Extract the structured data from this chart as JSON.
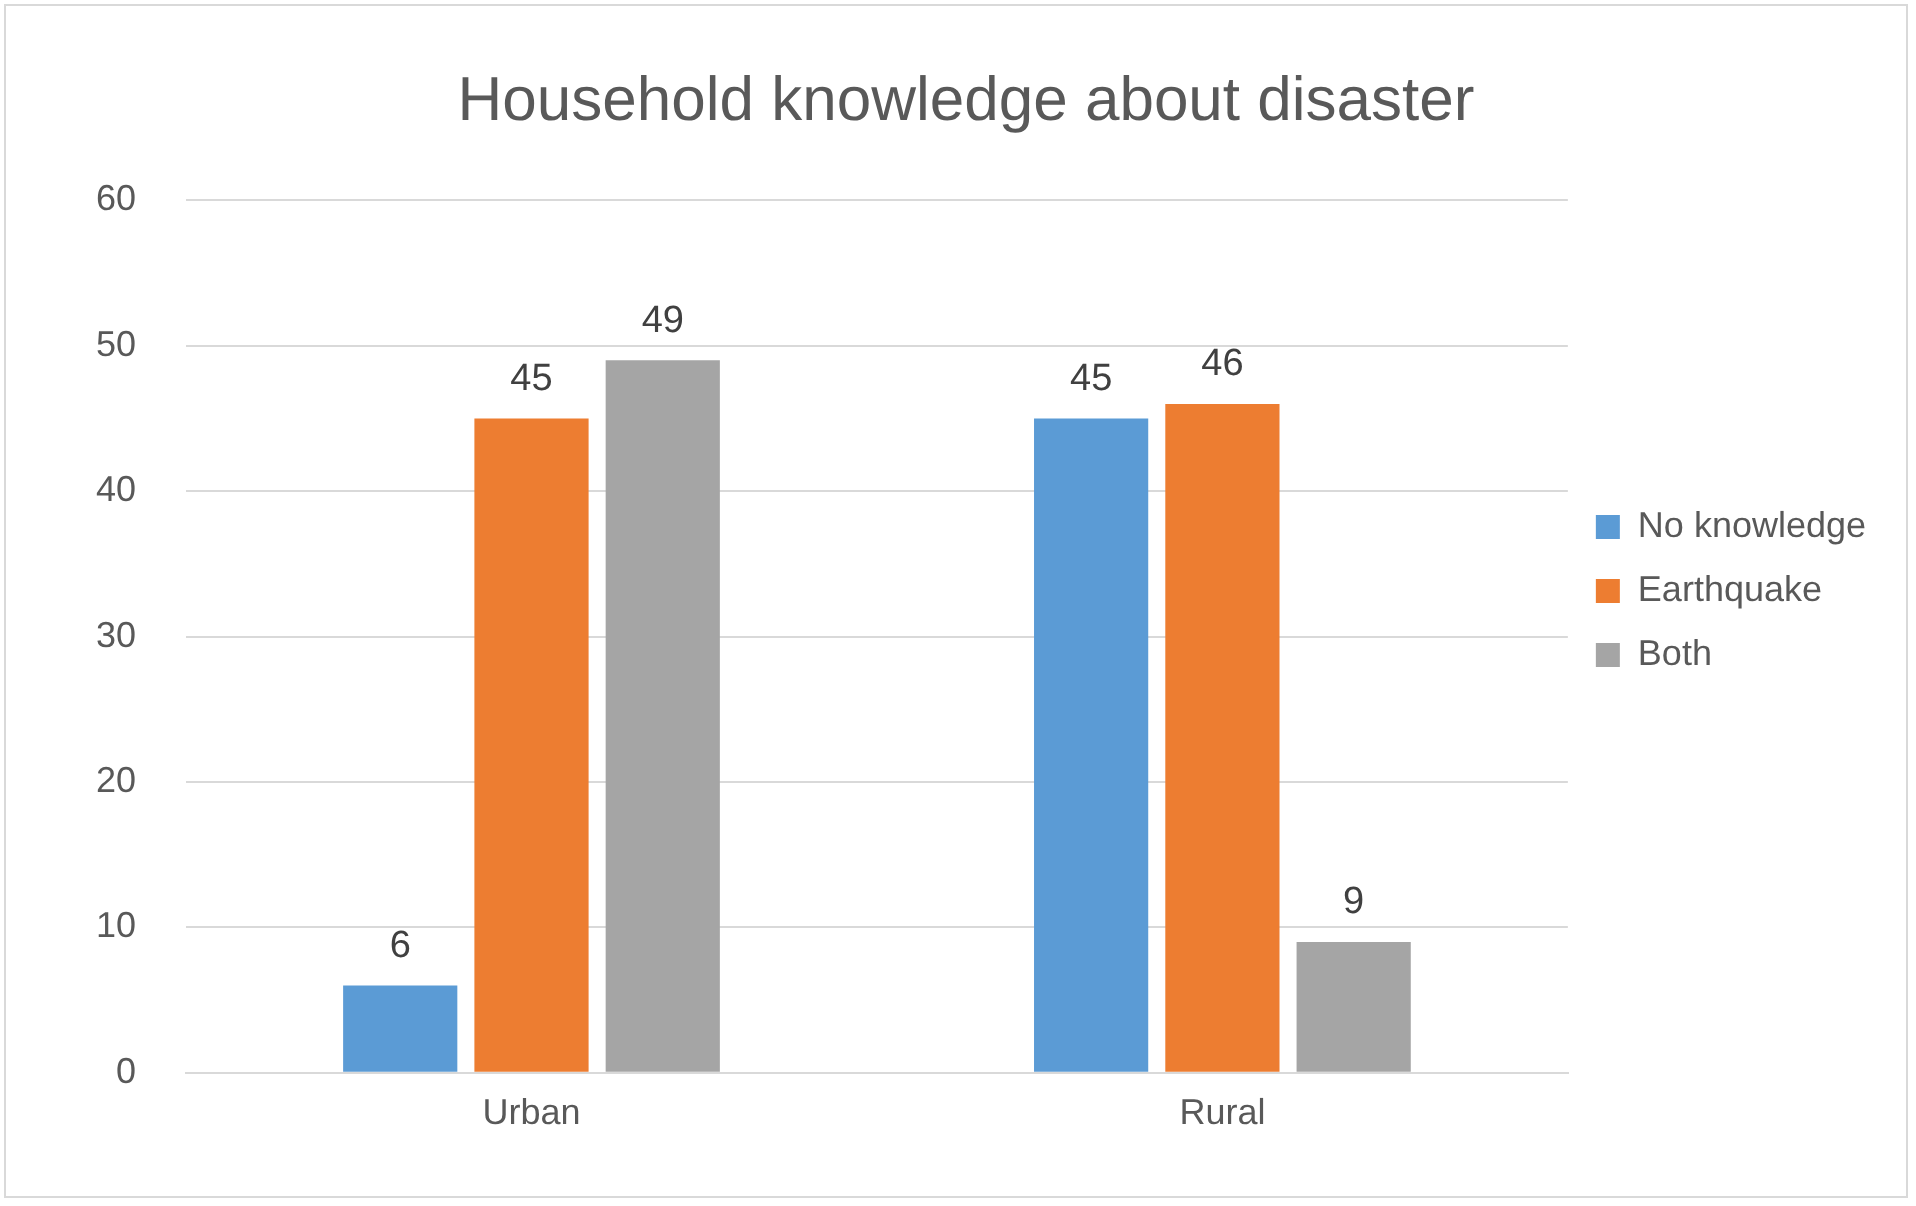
{
  "chart_data": {
    "type": "bar",
    "title": "Household knowledge about disaster",
    "categories": [
      "Urban",
      "Rural"
    ],
    "series": [
      {
        "name": "No knowledge",
        "color": "#5b9bd5",
        "values": [
          6,
          45
        ]
      },
      {
        "name": "Earthquake",
        "color": "#ed7d31",
        "values": [
          45,
          46
        ]
      },
      {
        "name": "Both",
        "color": "#a5a5a5",
        "values": [
          49,
          9
        ]
      }
    ],
    "ylim": [
      0,
      60
    ],
    "yticks": [
      0,
      10,
      20,
      30,
      40,
      50,
      60
    ],
    "grid": "y",
    "legend": "right",
    "data_labels": true
  }
}
